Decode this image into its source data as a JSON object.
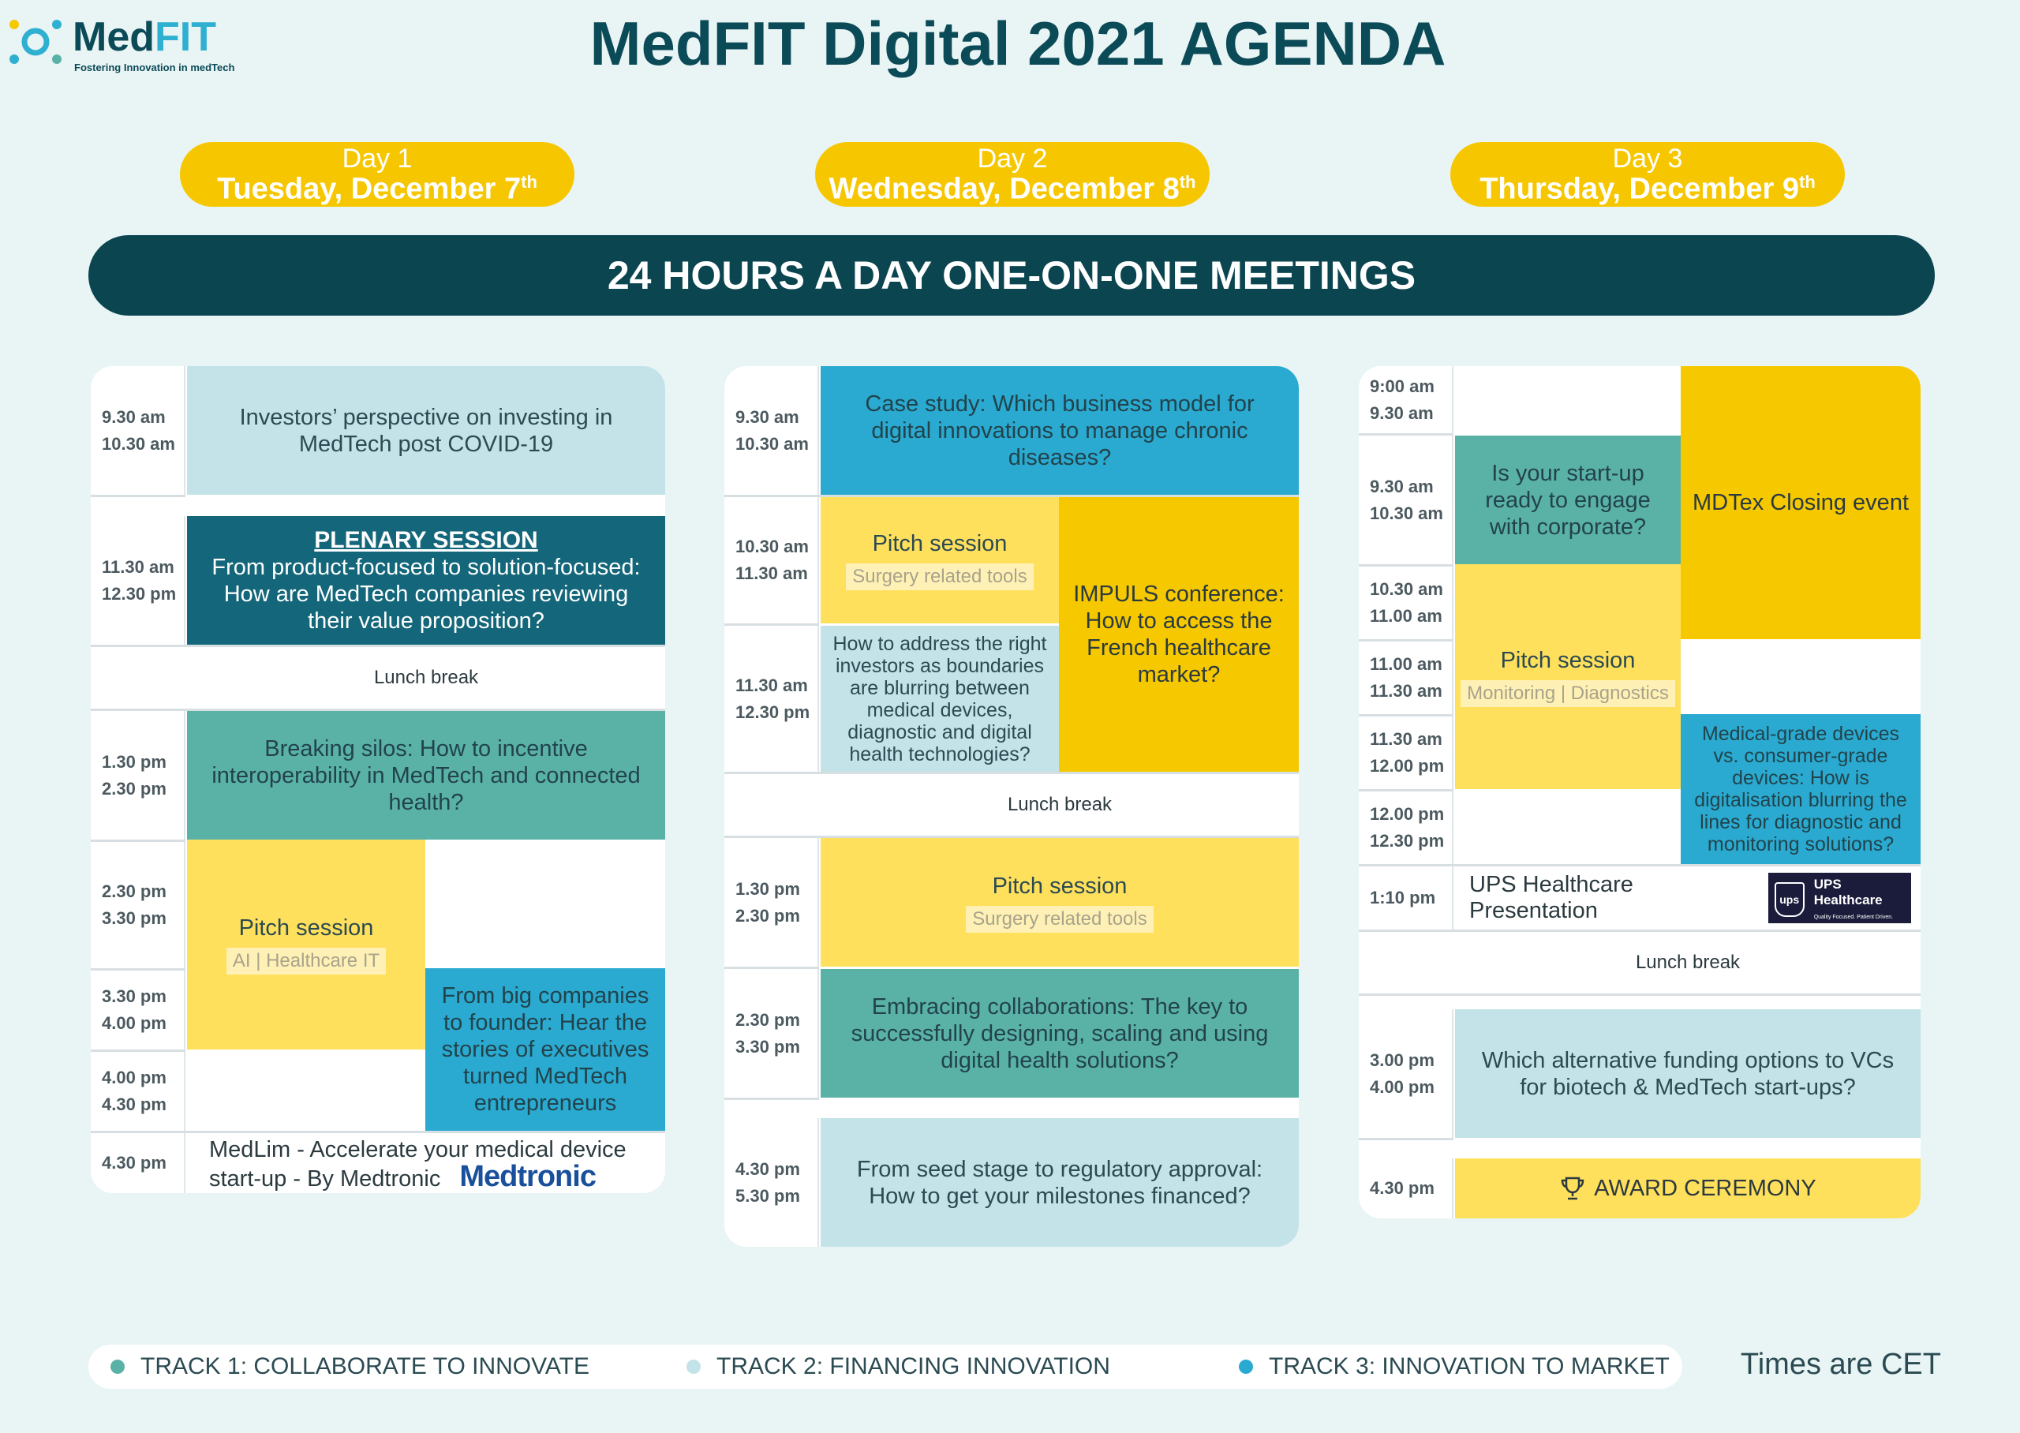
{
  "header": {
    "logo_word_a": "Med",
    "logo_word_b": "FIT",
    "logo_tagline": "Fostering Innovation in medTech",
    "title": "MedFIT Digital 2021 AGENDA"
  },
  "days": [
    {
      "label": "Day 1",
      "date": "Tuesday, December 7",
      "sup": "th"
    },
    {
      "label": "Day 2",
      "date": "Wednesday, December 8",
      "sup": "th"
    },
    {
      "label": "Day 3",
      "date": "Thursday, December 9",
      "sup": "th"
    }
  ],
  "banner": "24 HOURS A DAY ONE-ON-ONE MEETINGS",
  "day1": {
    "t1": [
      "9.30 am",
      "10.30 am"
    ],
    "s1": "Investors’ perspective on investing in MedTech post COVID-19",
    "t2": [
      "11.30 am",
      "12.30 pm"
    ],
    "s2_head": "PLENARY SESSION",
    "s2": "From product-focused to solution-focused: How are MedTech companies reviewing their value proposition?",
    "lunch": "Lunch break",
    "t3": [
      "1.30 pm",
      "2.30 pm"
    ],
    "s3": "Breaking silos: How to incentive interoperability in MedTech and connected health?",
    "t4": [
      "2.30 pm",
      "3.30 pm"
    ],
    "t5": [
      "3.30 pm",
      "4.00 pm"
    ],
    "t6": [
      "4.00 pm",
      "4.30 pm"
    ],
    "pitch_title": "Pitch session",
    "pitch_tag": "AI | Healthcare IT",
    "s5": "From big companies to founder: Hear the stories of executives turned MedTech entrepreneurs",
    "t7": [
      "4.30 pm"
    ],
    "s7": "MedLim - Accelerate your medical device start-up - By Medtronic",
    "s7_logo": "Medtronic"
  },
  "day2": {
    "t1": [
      "9.30 am",
      "10.30 am"
    ],
    "s1": "Case study: Which business model for digital innovations to manage chronic diseases?",
    "t2": [
      "10.30 am",
      "11.30 am"
    ],
    "pitch1_title": "Pitch session",
    "pitch1_tag": "Surgery related tools",
    "impuls": "IMPULS conference: How to access the French healthcare market?",
    "t3": [
      "11.30 am",
      "12.30 pm"
    ],
    "s3": "How to address the right investors as boundaries are blurring between medical devices, diagnostic and digital health technologies?",
    "lunch": "Lunch break",
    "t4": [
      "1.30 pm",
      "2.30 pm"
    ],
    "pitch2_title": "Pitch session",
    "pitch2_tag": "Surgery related tools",
    "t5": [
      "2.30 pm",
      "3.30 pm"
    ],
    "s5": "Embracing collaborations: The key to successfully designing, scaling and using digital health solutions?",
    "t6": [
      "4.30 pm",
      "5.30 pm"
    ],
    "s6": "From seed stage to regulatory approval: How to get your milestones financed?"
  },
  "day3": {
    "t1": [
      "9:00 am",
      "9.30 am"
    ],
    "t2": [
      "9.30 am",
      "10.30 am"
    ],
    "s2": "Is your start-up ready to engage with corporate?",
    "mdtex": "MDTex Closing event",
    "t3": [
      "10.30 am",
      "11.00 am"
    ],
    "t4": [
      "11.00 am",
      "11.30 am"
    ],
    "pitch_title": "Pitch session",
    "pitch_tag": "Monitoring | Diagnostics",
    "t5": [
      "11.30 am",
      "12.00 pm"
    ],
    "s5": "Medical-grade devices vs. consumer-grade devices: How is digitalisation blurring the lines for diagnostic and monitoring solutions?",
    "t6": [
      "12.00 pm",
      "12.30 pm"
    ],
    "t7": [
      "1:10 pm"
    ],
    "ups": "UPS Healthcare Presentation",
    "ups_logo": "UPS Healthcare",
    "ups_logo_sub": "Quality Focused. Patient Driven.",
    "lunch": "Lunch break",
    "t8": [
      "3.00 pm",
      "4.00 pm"
    ],
    "s8": "Which alternative funding options to VCs for biotech & MedTech start-ups?",
    "t9": [
      "4.30 pm"
    ],
    "award": "AWARD CEREMONY"
  },
  "legend": [
    {
      "label": "TRACK 1: COLLABORATE TO INNOVATE",
      "color": "#5ab2a7"
    },
    {
      "label": "TRACK 2: FINANCING INNOVATION",
      "color": "#c3e3e8"
    },
    {
      "label": "TRACK 3: INNOVATION TO MARKET",
      "color": "#2aaad0"
    }
  ],
  "timezone_note": "Times are CET"
}
